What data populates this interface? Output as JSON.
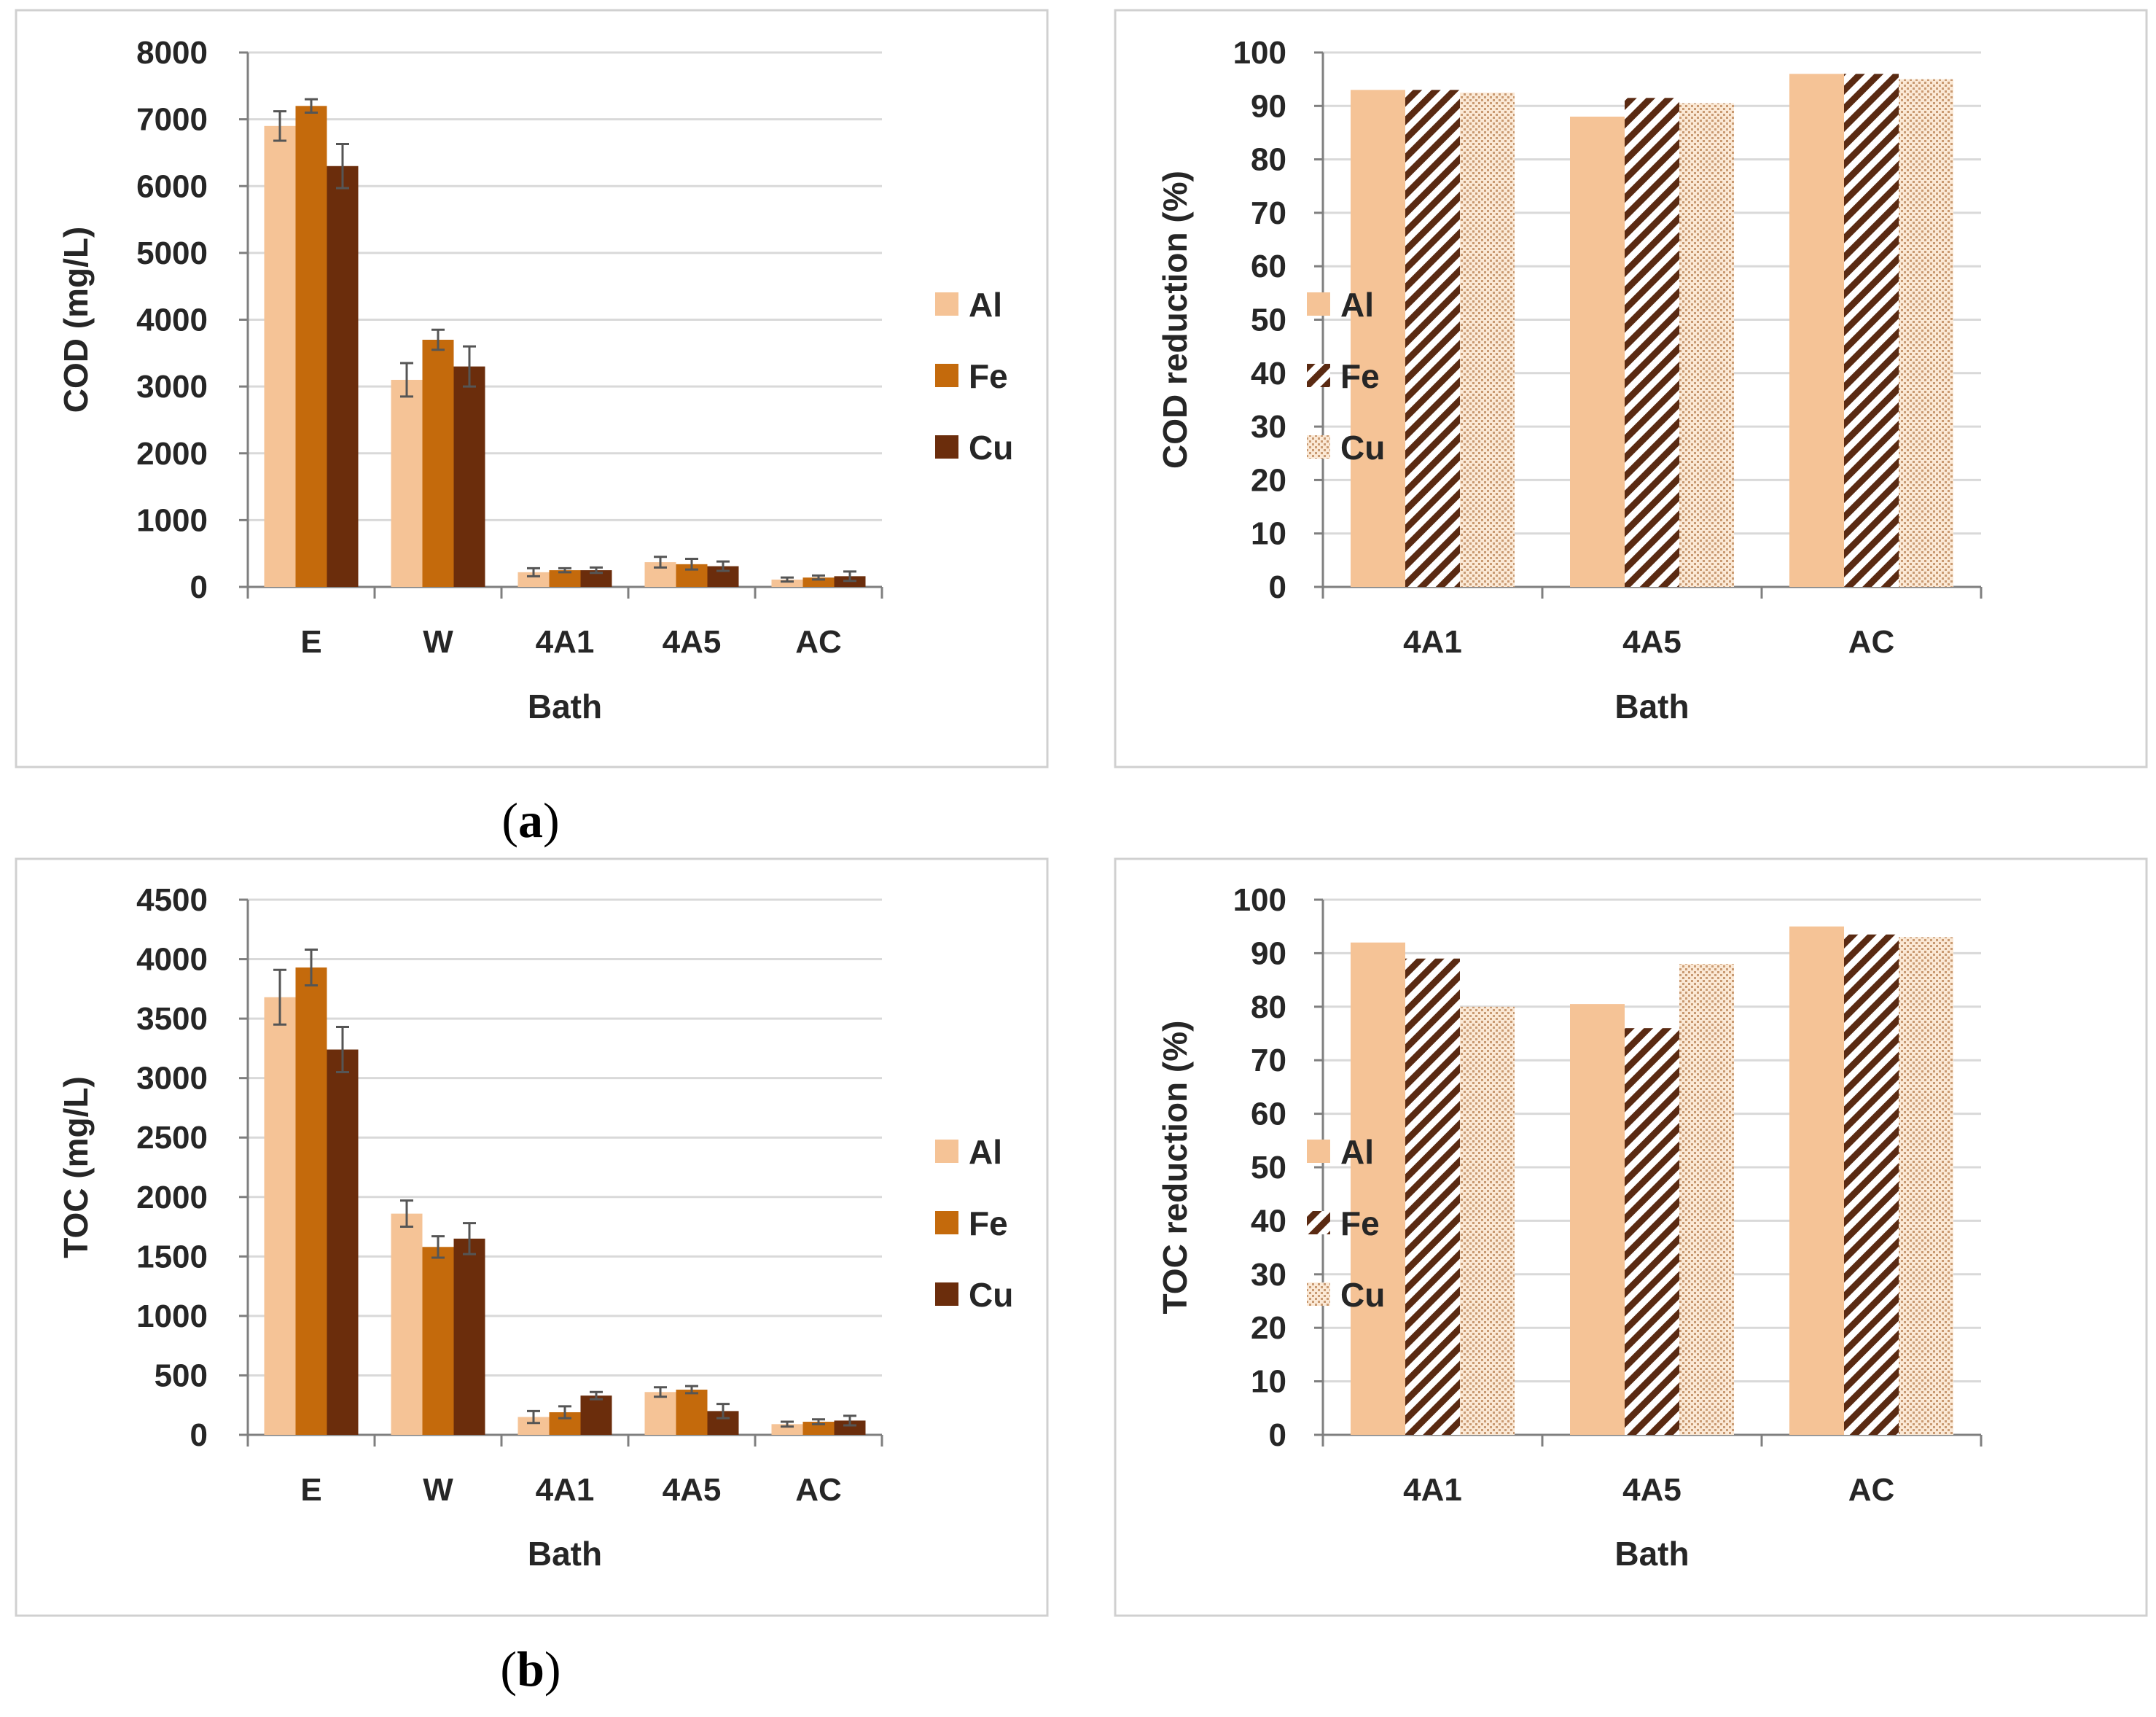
{
  "colors": {
    "al": "#f5c396",
    "fe": "#c46a0c",
    "cu": "#6b2d0c",
    "hatch_fe": "#5a2a12",
    "dots_cu": "#c99a72"
  },
  "captions": {
    "a": "a",
    "b": "b"
  },
  "chart_data": [
    {
      "type": "bar",
      "id": "cod",
      "categories": [
        "E",
        "W",
        "4A1",
        "4A5",
        "AC"
      ],
      "series": [
        {
          "name": "Al",
          "values": [
            6900,
            3100,
            220,
            370,
            110
          ],
          "errors": [
            220,
            250,
            60,
            80,
            30
          ]
        },
        {
          "name": "Fe",
          "values": [
            7200,
            3700,
            250,
            340,
            140
          ],
          "errors": [
            100,
            150,
            30,
            80,
            30
          ]
        },
        {
          "name": "Cu",
          "values": [
            6300,
            3300,
            250,
            310,
            160
          ],
          "errors": [
            330,
            300,
            40,
            70,
            70
          ]
        }
      ],
      "yticks": [
        "0",
        "1000",
        "2000",
        "3000",
        "4000",
        "5000",
        "6000",
        "7000",
        "8000"
      ],
      "ylim": [
        0,
        8000
      ],
      "xlabel": "Bath",
      "ylabel": "COD (mg/L)",
      "legend": [
        "Al",
        "Fe",
        "Cu"
      ]
    },
    {
      "type": "bar",
      "id": "cod-reduction",
      "categories": [
        "4A1",
        "4A5",
        "AC"
      ],
      "series": [
        {
          "name": "Al",
          "values": [
            93,
            88,
            96
          ]
        },
        {
          "name": "Fe",
          "values": [
            93,
            91.5,
            96
          ]
        },
        {
          "name": "Cu",
          "values": [
            92.5,
            90.5,
            95
          ]
        }
      ],
      "yticks": [
        "0",
        "10",
        "20",
        "30",
        "40",
        "50",
        "60",
        "70",
        "80",
        "90",
        "100"
      ],
      "ylim": [
        0,
        100
      ],
      "xlabel": "Bath",
      "ylabel": "COD reduction (%)",
      "legend": [
        "Al",
        "Fe",
        "Cu"
      ]
    },
    {
      "type": "bar",
      "id": "toc",
      "categories": [
        "E",
        "W",
        "4A1",
        "4A5",
        "AC"
      ],
      "series": [
        {
          "name": "Al",
          "values": [
            3680,
            1860,
            150,
            360,
            90
          ],
          "errors": [
            230,
            110,
            50,
            40,
            20
          ]
        },
        {
          "name": "Fe",
          "values": [
            3930,
            1580,
            190,
            380,
            110
          ],
          "errors": [
            150,
            90,
            50,
            30,
            20
          ]
        },
        {
          "name": "Cu",
          "values": [
            3240,
            1650,
            330,
            200,
            120
          ],
          "errors": [
            190,
            130,
            30,
            60,
            40
          ]
        }
      ],
      "yticks": [
        "0",
        "500",
        "1000",
        "1500",
        "2000",
        "2500",
        "3000",
        "3500",
        "4000",
        "4500"
      ],
      "ylim": [
        0,
        4500
      ],
      "xlabel": "Bath",
      "ylabel": "TOC (mg/L)",
      "legend": [
        "Al",
        "Fe",
        "Cu"
      ]
    },
    {
      "type": "bar",
      "id": "toc-reduction",
      "categories": [
        "4A1",
        "4A5",
        "AC"
      ],
      "series": [
        {
          "name": "Al",
          "values": [
            92,
            80.5,
            95
          ]
        },
        {
          "name": "Fe",
          "values": [
            89,
            76,
            93.5
          ]
        },
        {
          "name": "Cu",
          "values": [
            80,
            88,
            93
          ]
        }
      ],
      "yticks": [
        "0",
        "10",
        "20",
        "30",
        "40",
        "50",
        "60",
        "70",
        "80",
        "90",
        "100"
      ],
      "ylim": [
        0,
        100
      ],
      "xlabel": "Bath",
      "ylabel": "TOC reduction (%)",
      "legend": [
        "Al",
        "Fe",
        "Cu"
      ]
    }
  ]
}
